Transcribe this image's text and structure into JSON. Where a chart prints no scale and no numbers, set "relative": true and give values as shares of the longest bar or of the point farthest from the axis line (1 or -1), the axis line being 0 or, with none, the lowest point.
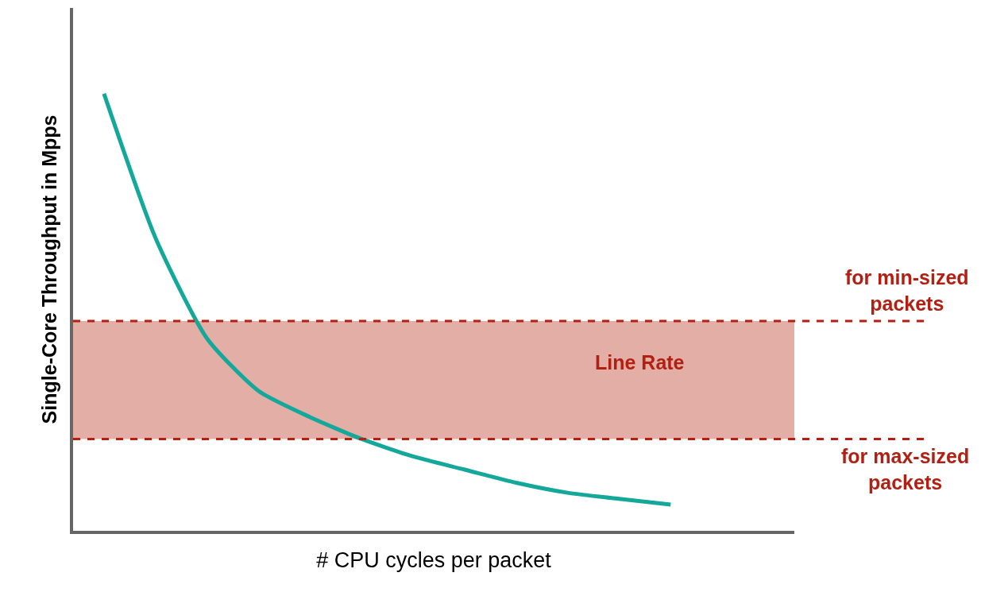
{
  "chart_data": {
    "type": "line",
    "relative": true,
    "xlabel": "# CPU cycles per packet",
    "ylabel": "Single-Core Throughput in Mpps",
    "categories": [
      null,
      null,
      null,
      null,
      null,
      null,
      null,
      null,
      null,
      null,
      null,
      null
    ],
    "series": [
      {
        "color": "#14a89a",
        "values": [
          1.0,
          0.67,
          0.44,
          0.32,
          0.26,
          0.21,
          0.17,
          0.14,
          0.11,
          0.087,
          0.073,
          0.06
        ]
      }
    ],
    "bands": [
      {
        "axis": "y",
        "from": 0.21,
        "to": 0.48,
        "label": "Line Rate",
        "color": "#e3aea6"
      }
    ],
    "ref_lines": [
      {
        "axis": "y",
        "value": 0.48,
        "label": "for min-sized packets",
        "color": "#b22014",
        "line_style": "dashed"
      },
      {
        "axis": "y",
        "value": 0.21,
        "label": "for max-sized packets",
        "color": "#b22014",
        "line_style": "dashed"
      }
    ],
    "marker": "none",
    "line_style": "solid",
    "tick_labels": false
  }
}
